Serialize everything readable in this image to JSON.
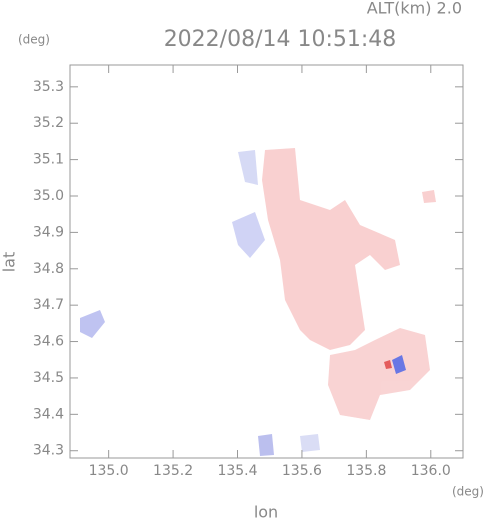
{
  "chart_data": {
    "type": "map",
    "title": "2022/08/14 10:51:48",
    "subtitle": "ALT(km) 2.0",
    "x_label": "lon",
    "y_label": "lat",
    "x_unit": "(deg)",
    "y_unit": "(deg)",
    "xlim": [
      134.88,
      136.1
    ],
    "xticks": [
      {
        "value": 135.0,
        "label": "135.0"
      },
      135.2,
      135.4,
      135.6,
      135.8,
      {
        "value": 136.0,
        "label": "136.0"
      }
    ],
    "ylim": [
      34.28,
      35.36
    ],
    "yticks": [
      34.3,
      34.4,
      34.5,
      34.6,
      34.7,
      34.8,
      34.9,
      {
        "value": 35.0,
        "label": "35.0"
      },
      35.1,
      35.2,
      35.3
    ]
  }
}
